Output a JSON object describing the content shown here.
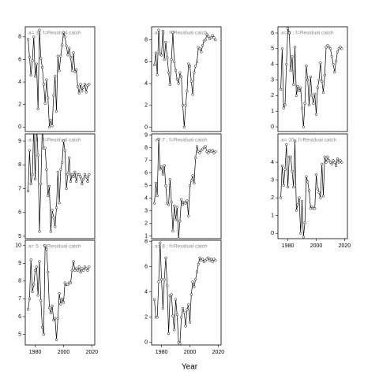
{
  "chart_data": [
    {
      "type": "line",
      "title": "a= 3 ; f=Residual catch",
      "x": [
        1975,
        1976,
        1977,
        1978,
        1979,
        1980,
        1981,
        1982,
        1983,
        1984,
        1985,
        1986,
        1987,
        1988,
        1989,
        1990,
        1991,
        1992,
        1993,
        1994,
        1995,
        1996,
        1997,
        1998,
        1999,
        2000,
        2001,
        2002,
        2003,
        2004,
        2005,
        2006,
        2007,
        2008,
        2009,
        2010,
        2011,
        2012,
        2013,
        2014,
        2015,
        2016,
        2017,
        2018
      ],
      "values": [
        7.8,
        6.2,
        4.6,
        5.9,
        8.0,
        4.5,
        5.6,
        1.6,
        8.6,
        6.1,
        5.3,
        3.8,
        2.1,
        4.2,
        2.6,
        0.0,
        0.6,
        0.1,
        2.8,
        4.5,
        1.4,
        6.3,
        5.0,
        6.3,
        7.3,
        8.4,
        8.0,
        7.2,
        6.4,
        7.0,
        6.2,
        5.0,
        6.6,
        4.9,
        5.1,
        3.6,
        3.0,
        3.8,
        3.2,
        3.5,
        3.8,
        3.1,
        3.7,
        3.8
      ],
      "xlim": [
        1973,
        2022
      ],
      "ylim": [
        -0.4,
        8.9
      ],
      "yticks": [
        0,
        2,
        4,
        6,
        8
      ]
    },
    {
      "type": "line",
      "title": "a= 6 ; f=Residual catch",
      "x": [
        1975,
        1976,
        1977,
        1978,
        1979,
        1980,
        1981,
        1982,
        1983,
        1984,
        1985,
        1986,
        1987,
        1988,
        1989,
        1990,
        1991,
        1992,
        1993,
        1994,
        1995,
        1996,
        1997,
        1998,
        1999,
        2000,
        2001,
        2002,
        2003,
        2004,
        2005,
        2006,
        2007,
        2008,
        2009,
        2010,
        2011,
        2012,
        2013,
        2014,
        2015,
        2016,
        2017,
        2018
      ],
      "values": [
        5.7,
        6.8,
        4.8,
        8.9,
        6.7,
        6.6,
        8.8,
        6.2,
        7.8,
        6.4,
        5.0,
        3.9,
        6.2,
        8.7,
        6.0,
        5.2,
        4.4,
        4.0,
        5.0,
        4.6,
        2.0,
        0.0,
        2.0,
        3.3,
        5.8,
        5.6,
        4.2,
        3.0,
        5.0,
        5.6,
        6.0,
        7.3,
        7.2,
        6.9,
        7.5,
        7.9,
        8.0,
        8.5,
        8.3,
        8.1,
        8.2,
        8.4,
        8.2,
        8.0
      ],
      "xlim": [
        1973,
        2022
      ],
      "ylim": [
        -0.4,
        9.2
      ],
      "yticks": [
        0,
        2,
        4,
        6,
        8
      ]
    },
    {
      "type": "line",
      "title": "a= 9 ; f=Residual catch",
      "x": [
        1975,
        1976,
        1977,
        1978,
        1979,
        1980,
        1981,
        1982,
        1983,
        1984,
        1985,
        1986,
        1987,
        1988,
        1989,
        1990,
        1991,
        1992,
        1993,
        1994,
        1995,
        1996,
        1997,
        1998,
        1999,
        2000,
        2001,
        2002,
        2003,
        2004,
        2005,
        2006,
        2007,
        2008,
        2009,
        2010,
        2011,
        2012,
        2013,
        2014,
        2015,
        2016,
        2017,
        2018
      ],
      "values": [
        2.4,
        5.0,
        1.2,
        1.4,
        4.0,
        6.3,
        6.0,
        3.6,
        4.5,
        2.7,
        5.1,
        2.0,
        2.6,
        2.3,
        2.5,
        1.2,
        0.0,
        1.5,
        3.9,
        3.0,
        1.4,
        3.2,
        2.0,
        1.5,
        2.1,
        0.8,
        2.5,
        3.0,
        4.1,
        2.9,
        2.2,
        3.3,
        5.1,
        5.2,
        5.1,
        5.0,
        4.5,
        4.0,
        3.5,
        4.2,
        4.8,
        5.0,
        5.1,
        5.0
      ],
      "xlim": [
        1973,
        2022
      ],
      "ylim": [
        -0.3,
        6.4
      ],
      "yticks": [
        0,
        1,
        2,
        3,
        4,
        5,
        6
      ]
    },
    {
      "type": "line",
      "title": "a= 4 ; f=Residual catch",
      "x": [
        1975,
        1976,
        1977,
        1978,
        1979,
        1980,
        1981,
        1982,
        1983,
        1984,
        1985,
        1986,
        1987,
        1988,
        1989,
        1990,
        1991,
        1992,
        1993,
        1994,
        1995,
        1996,
        1997,
        1998,
        1999,
        2000,
        2001,
        2002,
        2003,
        2004,
        2005,
        2006,
        2007,
        2008,
        2009,
        2010,
        2011,
        2012,
        2013,
        2014,
        2015,
        2016,
        2017,
        2018
      ],
      "values": [
        6.9,
        8.6,
        7.2,
        7.6,
        9.6,
        7.4,
        9.7,
        8.4,
        5.2,
        7.2,
        9.6,
        8.7,
        8.7,
        7.8,
        6.7,
        7.1,
        5.2,
        6.1,
        5.8,
        5.4,
        6.2,
        7.7,
        6.4,
        7.8,
        8.1,
        9.0,
        8.6,
        7.0,
        7.6,
        8.3,
        7.3,
        7.6,
        7.5,
        7.7,
        7.3,
        7.6,
        7.6,
        7.5,
        7.2,
        7.4,
        7.6,
        7.5,
        7.3,
        7.6
      ],
      "xlim": [
        1973,
        2022
      ],
      "ylim": [
        4.9,
        9.3
      ],
      "yticks": [
        5,
        6,
        7,
        8,
        9
      ]
    },
    {
      "type": "line",
      "title": "a= 7 ; f=Residual catch",
      "x": [
        1975,
        1976,
        1977,
        1978,
        1979,
        1980,
        1981,
        1982,
        1983,
        1984,
        1985,
        1986,
        1987,
        1988,
        1989,
        1990,
        1991,
        1992,
        1993,
        1994,
        1995,
        1996,
        1997,
        1998,
        1999,
        2000,
        2001,
        2002,
        2003,
        2004,
        2005,
        2006,
        2007,
        2008,
        2009,
        2010,
        2011,
        2012,
        2013,
        2014,
        2015,
        2016,
        2017,
        2018
      ],
      "values": [
        3.6,
        5.2,
        4.2,
        8.7,
        6.3,
        6.5,
        5.9,
        6.6,
        5.0,
        3.6,
        3.5,
        5.5,
        3.7,
        1.4,
        3.4,
        2.3,
        3.3,
        0.8,
        2.2,
        3.9,
        3.5,
        3.7,
        3.6,
        3.8,
        2.6,
        5.0,
        5.4,
        5.8,
        5.2,
        7.2,
        8.1,
        7.7,
        7.6,
        7.8,
        7.9,
        8.0,
        8.1,
        7.7,
        7.6,
        7.8,
        7.7,
        7.8,
        7.6,
        7.7
      ],
      "xlim": [
        1973,
        2022
      ],
      "ylim": [
        0.8,
        9.1
      ],
      "yticks": [
        1,
        2,
        3,
        4,
        5,
        6,
        7,
        8,
        9
      ]
    },
    {
      "type": "line",
      "title": "a= 10 ; f=Residual catch",
      "x": [
        1975,
        1976,
        1977,
        1978,
        1979,
        1980,
        1981,
        1982,
        1983,
        1984,
        1985,
        1986,
        1987,
        1988,
        1989,
        1990,
        1991,
        1992,
        1993,
        1994,
        1995,
        1996,
        1997,
        1998,
        1999,
        2000,
        2001,
        2002,
        2003,
        2004,
        2005,
        2006,
        2007,
        2008,
        2009,
        2010,
        2011,
        2012,
        2013,
        2014,
        2015,
        2016,
        2017,
        2018
      ],
      "values": [
        2.0,
        3.8,
        2.7,
        3.6,
        5.0,
        2.6,
        4.3,
        4.3,
        3.5,
        2.6,
        5.2,
        1.3,
        1.6,
        2.0,
        0.0,
        1.8,
        -0.2,
        0.6,
        3.2,
        2.9,
        2.4,
        1.4,
        1.5,
        1.4,
        1.4,
        3.3,
        2.5,
        2.3,
        2.0,
        3.9,
        2.1,
        4.3,
        4.0,
        4.3,
        4.1,
        4.0,
        3.9,
        4.1,
        4.0,
        3.8,
        4.2,
        4.0,
        4.1,
        4.0
      ],
      "xlim": [
        1973,
        2022
      ],
      "ylim": [
        -0.3,
        5.6
      ],
      "xticks": [
        1980,
        2000,
        2020
      ],
      "yticks": [
        0,
        1,
        2,
        3,
        4
      ]
    },
    {
      "type": "line",
      "title": "a= 5 ; f=Residual catch",
      "x": [
        1975,
        1976,
        1977,
        1978,
        1979,
        1980,
        1981,
        1982,
        1983,
        1984,
        1985,
        1986,
        1987,
        1988,
        1989,
        1990,
        1991,
        1992,
        1993,
        1994,
        1995,
        1996,
        1997,
        1998,
        1999,
        2000,
        2001,
        2002,
        2003,
        2004,
        2005,
        2006,
        2007,
        2008,
        2009,
        2010,
        2011,
        2012,
        2013,
        2014,
        2015,
        2016,
        2017,
        2018
      ],
      "values": [
        6.4,
        7.0,
        9.2,
        7.4,
        7.8,
        8.6,
        8.8,
        7.2,
        9.1,
        6.9,
        5.4,
        5.0,
        10.0,
        9.8,
        8.5,
        6.5,
        6.2,
        6.6,
        5.8,
        5.9,
        4.7,
        5.9,
        7.3,
        6.7,
        7.0,
        6.8,
        7.9,
        7.8,
        7.8,
        7.9,
        7.9,
        8.6,
        9.1,
        8.6,
        8.7,
        8.6,
        8.8,
        8.5,
        8.7,
        8.6,
        8.8,
        8.7,
        8.6,
        8.8
      ],
      "xlim": [
        1973,
        2022
      ],
      "ylim": [
        4.4,
        10.3
      ],
      "xticks": [
        1980,
        2000,
        2020
      ],
      "yticks": [
        5,
        6,
        7,
        8,
        9,
        10
      ]
    },
    {
      "type": "line",
      "title": "a= 8 ; f=Residual catch",
      "x": [
        1975,
        1976,
        1977,
        1978,
        1979,
        1980,
        1981,
        1982,
        1983,
        1984,
        1985,
        1986,
        1987,
        1988,
        1989,
        1990,
        1991,
        1992,
        1993,
        1994,
        1995,
        1996,
        1997,
        1998,
        1999,
        2000,
        2001,
        2002,
        2003,
        2004,
        2005,
        2006,
        2007,
        2008,
        2009,
        2010,
        2011,
        2012,
        2013,
        2014,
        2015,
        2016,
        2017,
        2018
      ],
      "values": [
        3.4,
        2.0,
        2.0,
        4.8,
        7.9,
        5.0,
        2.7,
        5.0,
        6.7,
        4.5,
        0.7,
        3.7,
        3.8,
        2.1,
        1.0,
        3.4,
        2.2,
        0.0,
        -0.1,
        2.0,
        2.7,
        2.4,
        1.3,
        2.6,
        3.0,
        1.6,
        3.8,
        4.8,
        4.4,
        5.0,
        5.6,
        6.2,
        6.7,
        6.5,
        6.6,
        6.4,
        6.5,
        6.6,
        6.7,
        6.5,
        6.6,
        6.4,
        6.6,
        6.5
      ],
      "xlim": [
        1973,
        2022
      ],
      "ylim": [
        -0.2,
        8.1
      ],
      "xticks": [
        1980,
        2000,
        2020
      ],
      "yticks": [
        0,
        2,
        4,
        6,
        8
      ]
    }
  ],
  "xlabel": "Year"
}
